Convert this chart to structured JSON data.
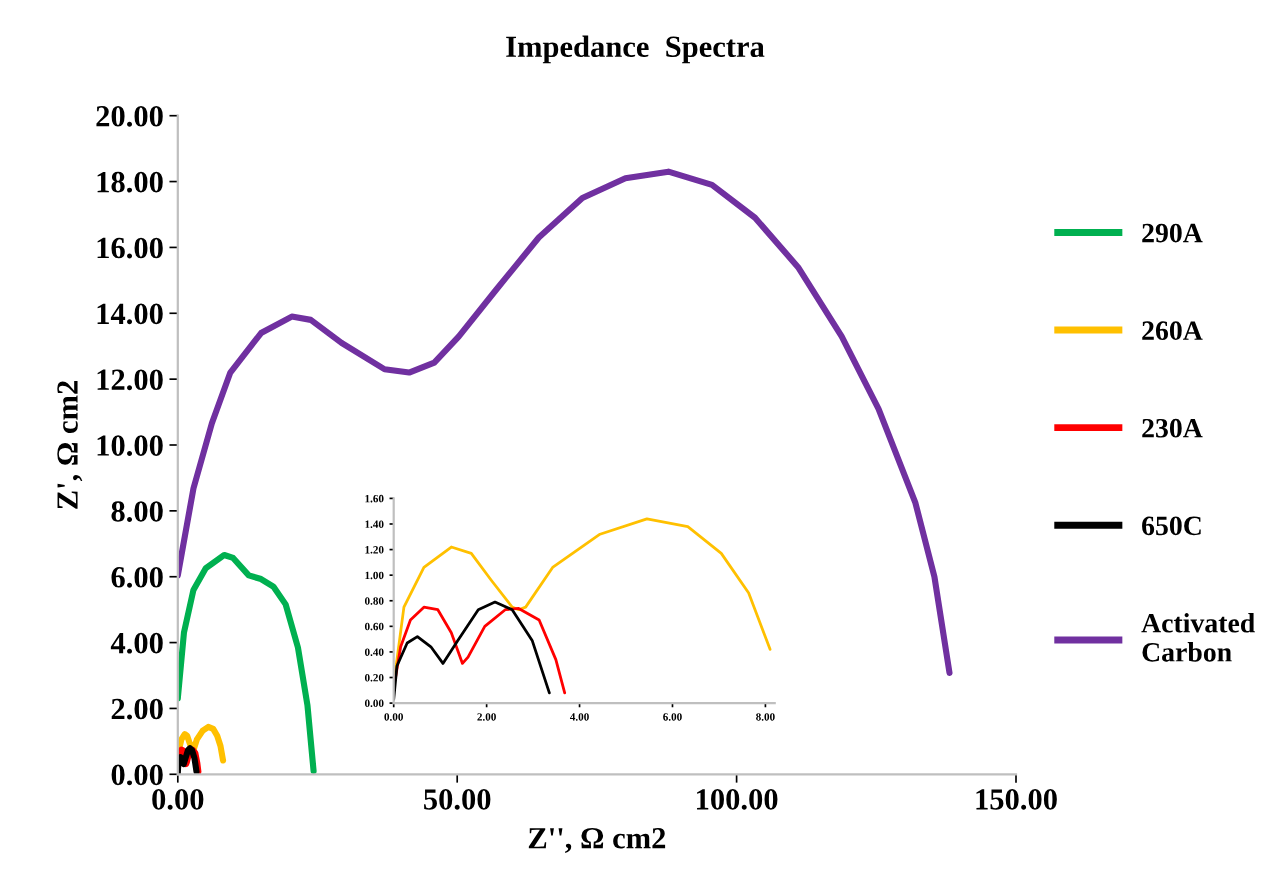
{
  "chart_data": [
    {
      "type": "line",
      "title": "Impedance  Spectra",
      "xlabel": "Z'', Ω cm2",
      "ylabel": "Z', Ω cm2",
      "xlim": [
        0,
        150
      ],
      "ylim": [
        0,
        20
      ],
      "xticks": [
        {
          "value": 0,
          "label": "0.00"
        },
        {
          "value": 50,
          "label": "50.00"
        },
        {
          "value": 100,
          "label": "100.00"
        },
        {
          "value": 150,
          "label": "150.00"
        }
      ],
      "yticks": [
        {
          "value": 0,
          "label": "0.00"
        },
        {
          "value": 2,
          "label": "2.00"
        },
        {
          "value": 4,
          "label": "4.00"
        },
        {
          "value": 6,
          "label": "6.00"
        },
        {
          "value": 8,
          "label": "8.00"
        },
        {
          "value": 10,
          "label": "10.00"
        },
        {
          "value": 12,
          "label": "12.00"
        },
        {
          "value": 14,
          "label": "14.00"
        },
        {
          "value": 16,
          "label": "16.00"
        },
        {
          "value": 18,
          "label": "18.00"
        },
        {
          "value": 20,
          "label": "20.00"
        }
      ],
      "grid": false,
      "legend": "right",
      "marker": "none",
      "line_style": "solid",
      "series": [
        {
          "name": "290A",
          "color": "#00b050",
          "x": [
            0,
            1.1,
            2.8,
            5,
            8.3,
            9.9,
            12.7,
            14.9,
            17.1,
            19.3,
            21.5,
            23.2,
            24.3
          ],
          "values": [
            2.3,
            4.3,
            5.6,
            6.26,
            6.66,
            6.57,
            6.04,
            5.93,
            5.7,
            5.16,
            3.85,
            2.1,
            0.1
          ]
        },
        {
          "name": "260A",
          "color": "#ffc000",
          "x": [
            0.03,
            0.22,
            0.65,
            1.24,
            1.67,
            2.1,
            2.55,
            2.69,
            2.84,
            3.42,
            4.44,
            5.45,
            6.33,
            7.05,
            7.64,
            8.1
          ],
          "values": [
            0.23,
            0.75,
            1.06,
            1.22,
            1.17,
            0.96,
            0.75,
            0.73,
            0.75,
            1.06,
            1.32,
            1.44,
            1.38,
            1.17,
            0.86,
            0.42
          ]
        },
        {
          "name": "230A",
          "color": "#ff0000",
          "x": [
            0.03,
            0.15,
            0.36,
            0.65,
            0.95,
            1.24,
            1.48,
            1.6,
            1.96,
            2.4,
            2.69,
            3.13,
            3.49,
            3.68
          ],
          "values": [
            0.18,
            0.44,
            0.65,
            0.75,
            0.73,
            0.55,
            0.31,
            0.36,
            0.6,
            0.73,
            0.74,
            0.65,
            0.34,
            0.08
          ]
        },
        {
          "name": "650C",
          "color": "#000000",
          "x": [
            0,
            0.07,
            0.29,
            0.51,
            0.8,
            1.06,
            1.38,
            1.82,
            2.18,
            2.55,
            2.98,
            3.35
          ],
          "values": [
            0.03,
            0.29,
            0.47,
            0.52,
            0.44,
            0.31,
            0.49,
            0.73,
            0.79,
            0.73,
            0.49,
            0.08
          ]
        },
        {
          "name": "Activated\nCarbon",
          "color": "#7030a0",
          "x": [
            0,
            2.8,
            6.1,
            9.4,
            14.9,
            20.4,
            23.8,
            29.3,
            37,
            41.4,
            45.9,
            50.3,
            56.9,
            64.6,
            72.4,
            80.1,
            87.8,
            95.6,
            103.3,
            111,
            118.8,
            125.4,
            132,
            135.4,
            138.1
          ],
          "values": [
            6.04,
            8.68,
            10.66,
            12.2,
            13.4,
            13.9,
            13.8,
            13.1,
            12.3,
            12.2,
            12.5,
            13.3,
            14.7,
            16.3,
            17.5,
            18.1,
            18.3,
            17.9,
            16.9,
            15.4,
            13.3,
            11.1,
            8.24,
            6.0,
            3.08
          ]
        }
      ]
    },
    {
      "type": "line",
      "xlim": [
        0,
        8.2
      ],
      "ylim": [
        0,
        1.6
      ],
      "xticks": [
        {
          "value": 0,
          "label": "0.00"
        },
        {
          "value": 2,
          "label": "2.00"
        },
        {
          "value": 4,
          "label": "4.00"
        },
        {
          "value": 6,
          "label": "6.00"
        },
        {
          "value": 8,
          "label": "8.00"
        }
      ],
      "yticks": [
        {
          "value": 0,
          "label": "0.00"
        },
        {
          "value": 0.2,
          "label": "0.20"
        },
        {
          "value": 0.4,
          "label": "0.40"
        },
        {
          "value": 0.6,
          "label": "0.60"
        },
        {
          "value": 0.8,
          "label": "0.80"
        },
        {
          "value": 1.0,
          "label": "1.00"
        },
        {
          "value": 1.2,
          "label": "1.20"
        },
        {
          "value": 1.4,
          "label": "1.40"
        },
        {
          "value": 1.6,
          "label": "1.60"
        }
      ],
      "grid": false,
      "marker": "none",
      "line_style": "solid",
      "series": [
        {
          "color": "#ffc000",
          "x": [
            0.03,
            0.22,
            0.65,
            1.24,
            1.67,
            2.1,
            2.55,
            2.69,
            2.84,
            3.42,
            4.44,
            5.45,
            6.33,
            7.05,
            7.64,
            8.1
          ],
          "values": [
            0.23,
            0.75,
            1.06,
            1.22,
            1.17,
            0.96,
            0.75,
            0.73,
            0.75,
            1.06,
            1.32,
            1.44,
            1.38,
            1.17,
            0.86,
            0.42
          ]
        },
        {
          "color": "#ff0000",
          "x": [
            0.03,
            0.15,
            0.36,
            0.65,
            0.95,
            1.24,
            1.48,
            1.6,
            1.96,
            2.4,
            2.69,
            3.13,
            3.49,
            3.68
          ],
          "values": [
            0.18,
            0.44,
            0.65,
            0.75,
            0.73,
            0.55,
            0.31,
            0.36,
            0.6,
            0.73,
            0.74,
            0.65,
            0.34,
            0.08
          ]
        },
        {
          "color": "#000000",
          "x": [
            0,
            0.07,
            0.29,
            0.51,
            0.8,
            1.06,
            1.38,
            1.82,
            2.18,
            2.55,
            2.98,
            3.35
          ],
          "values": [
            0.03,
            0.29,
            0.47,
            0.52,
            0.44,
            0.31,
            0.49,
            0.73,
            0.79,
            0.73,
            0.49,
            0.08
          ]
        }
      ]
    }
  ]
}
